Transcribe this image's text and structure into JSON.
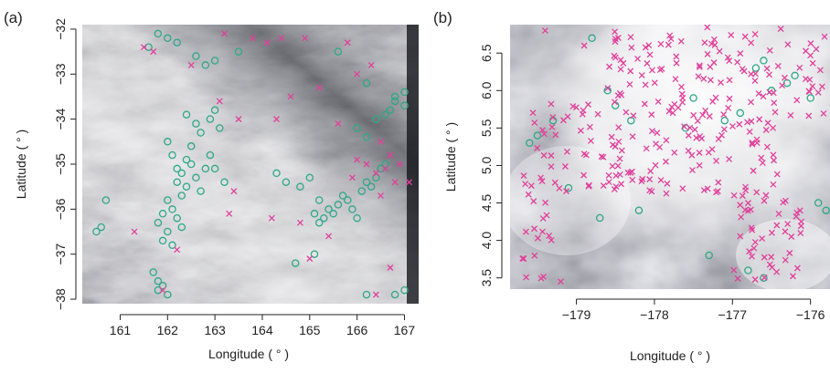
{
  "colors": {
    "circle": "#2fa886",
    "cross": "#e0409a",
    "axis": "#222222"
  },
  "chart_data": [
    {
      "type": "scatter",
      "panel_label": "(a)",
      "xlabel": "Longitude ( ° )",
      "ylabel": "Latitude ( ° )",
      "xlim": [
        160.2,
        167.3
      ],
      "ylim": [
        -38.1,
        -31.9
      ],
      "x_ticks": [
        "161",
        "162",
        "163",
        "164",
        "165",
        "166",
        "167"
      ],
      "y_ticks": [
        "−32",
        "−33",
        "−34",
        "−35",
        "−36",
        "−37",
        "−38"
      ],
      "background": "grayscale satellite image with bright cloud bands",
      "series": [
        {
          "marker": "circle",
          "x": [
            161.8,
            162.0,
            161.6,
            162.2,
            162.6,
            162.8,
            163.0,
            163.5,
            165.6,
            166.2,
            166.8,
            167.0,
            162.0,
            162.1,
            162.2,
            162.2,
            162.3,
            162.3,
            162.4,
            162.4,
            162.5,
            162.5,
            162.6,
            162.7,
            162.8,
            162.9,
            162.1,
            162.2,
            162.3,
            162.0,
            161.9,
            161.8,
            162.0,
            161.9,
            162.1,
            162.4,
            162.6,
            162.7,
            162.9,
            163.0,
            163.1,
            164.3,
            164.5,
            164.8,
            165.0,
            165.2,
            165.4,
            165.5,
            165.6,
            165.7,
            165.8,
            165.9,
            166.0,
            166.1,
            166.2,
            166.3,
            166.4,
            166.5,
            166.6,
            165.3,
            165.2,
            165.1,
            166.0,
            166.2,
            166.4,
            166.6,
            166.7,
            166.8,
            167.0,
            160.6,
            160.5,
            160.7,
            161.7,
            161.8,
            161.9,
            162.0,
            161.8,
            163.0,
            163.2,
            164.7,
            165.1,
            166.2,
            166.8,
            167.0
          ],
          "y": [
            -32.1,
            -32.2,
            -32.4,
            -32.3,
            -32.6,
            -32.8,
            -32.7,
            -32.5,
            -32.5,
            -33.2,
            -33.6,
            -33.4,
            -34.5,
            -34.8,
            -35.1,
            -35.4,
            -35.7,
            -35.2,
            -34.9,
            -35.5,
            -35.0,
            -34.6,
            -35.3,
            -35.6,
            -35.1,
            -34.8,
            -36.0,
            -36.2,
            -36.4,
            -35.8,
            -36.1,
            -36.3,
            -36.5,
            -36.7,
            -36.8,
            -33.9,
            -34.1,
            -34.3,
            -34.0,
            -33.8,
            -34.2,
            -35.2,
            -35.4,
            -35.5,
            -35.3,
            -35.8,
            -36.0,
            -36.1,
            -35.9,
            -35.7,
            -35.8,
            -36.0,
            -36.2,
            -35.6,
            -35.4,
            -35.5,
            -35.3,
            -35.1,
            -35.0,
            -36.2,
            -36.3,
            -36.1,
            -34.2,
            -34.4,
            -34.0,
            -33.9,
            -33.8,
            -33.5,
            -33.7,
            -36.4,
            -36.5,
            -35.8,
            -37.4,
            -37.6,
            -37.7,
            -37.9,
            -37.8,
            -35.1,
            -35.4,
            -37.2,
            -37.0,
            -37.9,
            -37.9,
            -37.8
          ]
        },
        {
          "marker": "cross",
          "x": [
            161.5,
            161.7,
            163.2,
            163.8,
            164.1,
            164.4,
            164.9,
            165.8,
            166.3,
            166.0,
            165.2,
            164.6,
            164.3,
            163.5,
            165.6,
            166.5,
            166.7,
            166.9,
            166.4,
            166.2,
            166.0,
            165.9,
            166.6,
            166.8,
            163.4,
            163.3,
            162.2,
            161.3,
            161.9,
            164.2,
            164.8,
            165.0,
            166.4,
            166.7,
            167.1,
            166.5,
            163.1,
            162.5,
            165.4
          ],
          "y": [
            -32.4,
            -32.5,
            -32.1,
            -32.2,
            -32.3,
            -32.2,
            -32.2,
            -32.3,
            -32.8,
            -33.0,
            -33.3,
            -33.5,
            -34.0,
            -34.0,
            -34.1,
            -34.5,
            -34.8,
            -35.0,
            -35.2,
            -35.0,
            -34.9,
            -35.3,
            -35.1,
            -35.4,
            -35.6,
            -36.1,
            -36.9,
            -36.5,
            -37.8,
            -36.2,
            -36.3,
            -37.1,
            -37.9,
            -37.3,
            -35.4,
            -35.7,
            -33.6,
            -32.8,
            -36.6
          ]
        }
      ]
    },
    {
      "type": "scatter",
      "panel_label": "(b)",
      "xlabel": "Longitude ( ° )",
      "ylabel": "Latitude ( ° )",
      "xlim": [
        -179.85,
        -175.75
      ],
      "ylim": [
        3.35,
        6.88
      ],
      "x_ticks": [
        "−179",
        "−178",
        "−177",
        "−176"
      ],
      "y_ticks": [
        "3.5",
        "4.0",
        "4.5",
        "5.0",
        "5.5",
        "6.0",
        "6.5"
      ],
      "background": "grayscale satellite image with large bright cloud mass",
      "series": [
        {
          "marker": "circle",
          "x": [
            -179.6,
            -179.5,
            -179.3,
            -178.8,
            -178.6,
            -178.5,
            -178.3,
            -177.6,
            -177.5,
            -177.1,
            -176.9,
            -176.7,
            -176.6,
            -176.5,
            -176.3,
            -176.2,
            -176.0,
            -175.9,
            -175.8,
            -179.1,
            -178.7,
            -178.2,
            -177.3,
            -176.8,
            -176.6
          ],
          "y": [
            5.3,
            5.4,
            5.6,
            6.7,
            6.0,
            5.8,
            5.6,
            5.5,
            5.9,
            5.6,
            5.7,
            6.3,
            6.4,
            6.0,
            6.1,
            6.2,
            5.9,
            4.5,
            4.4,
            4.7,
            4.3,
            4.4,
            3.8,
            3.6,
            3.5
          ]
        },
        {
          "marker": "cross",
          "generated": "dense",
          "x": [
            -179.4,
            -178.9,
            -179.2
          ],
          "y": [
            6.8,
            6.6,
            3.45
          ]
        }
      ]
    }
  ]
}
